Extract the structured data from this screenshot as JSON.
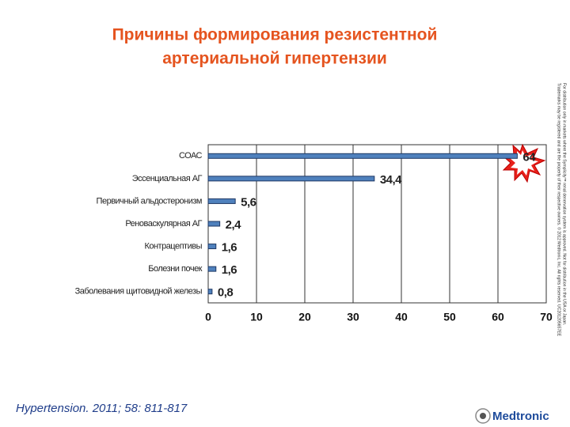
{
  "chart_data": {
    "type": "barh",
    "title": [
      "Причины формирования резистентной",
      "артериальной гипертензии"
    ],
    "categories": [
      "СОАС",
      "Эссенциальная АГ",
      "Первичный альдостеронизм",
      "Реноваскулярная АГ",
      "Контрацептивы",
      "Болезни почек",
      "Заболевания щитовидной железы"
    ],
    "values": [
      64,
      34.4,
      5.6,
      2.4,
      1.6,
      1.6,
      0.8
    ],
    "value_labels": [
      "64",
      "34,4",
      "5,6",
      "2,4",
      "1,6",
      "1,6",
      "0,8"
    ],
    "color": "#4f81bd",
    "xlim": [
      0,
      70
    ],
    "xticks": [
      0,
      10,
      20,
      30,
      40,
      50,
      60,
      70
    ],
    "grid": true
  },
  "citation": "Hypertension. 2011; 58: 811-817",
  "disclaimer": [
    "For distribution only in markets where the Symplicity™ renal denervation system is approved. Not for distribution in the USA or Japan.",
    "Trademarks may be registered and are the property of their respective owners. © 2012 Medtronic, Inc. All rights reserved. UC201205657EE"
  ],
  "logo": "Medtronic"
}
